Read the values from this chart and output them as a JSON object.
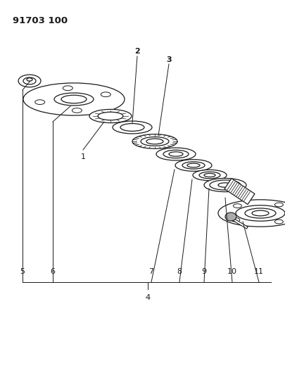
{
  "title": "91703 100",
  "bg_color": "#ffffff",
  "line_color": "#1a1a1a",
  "fig_w": 4.05,
  "fig_h": 5.33,
  "dpi": 100
}
